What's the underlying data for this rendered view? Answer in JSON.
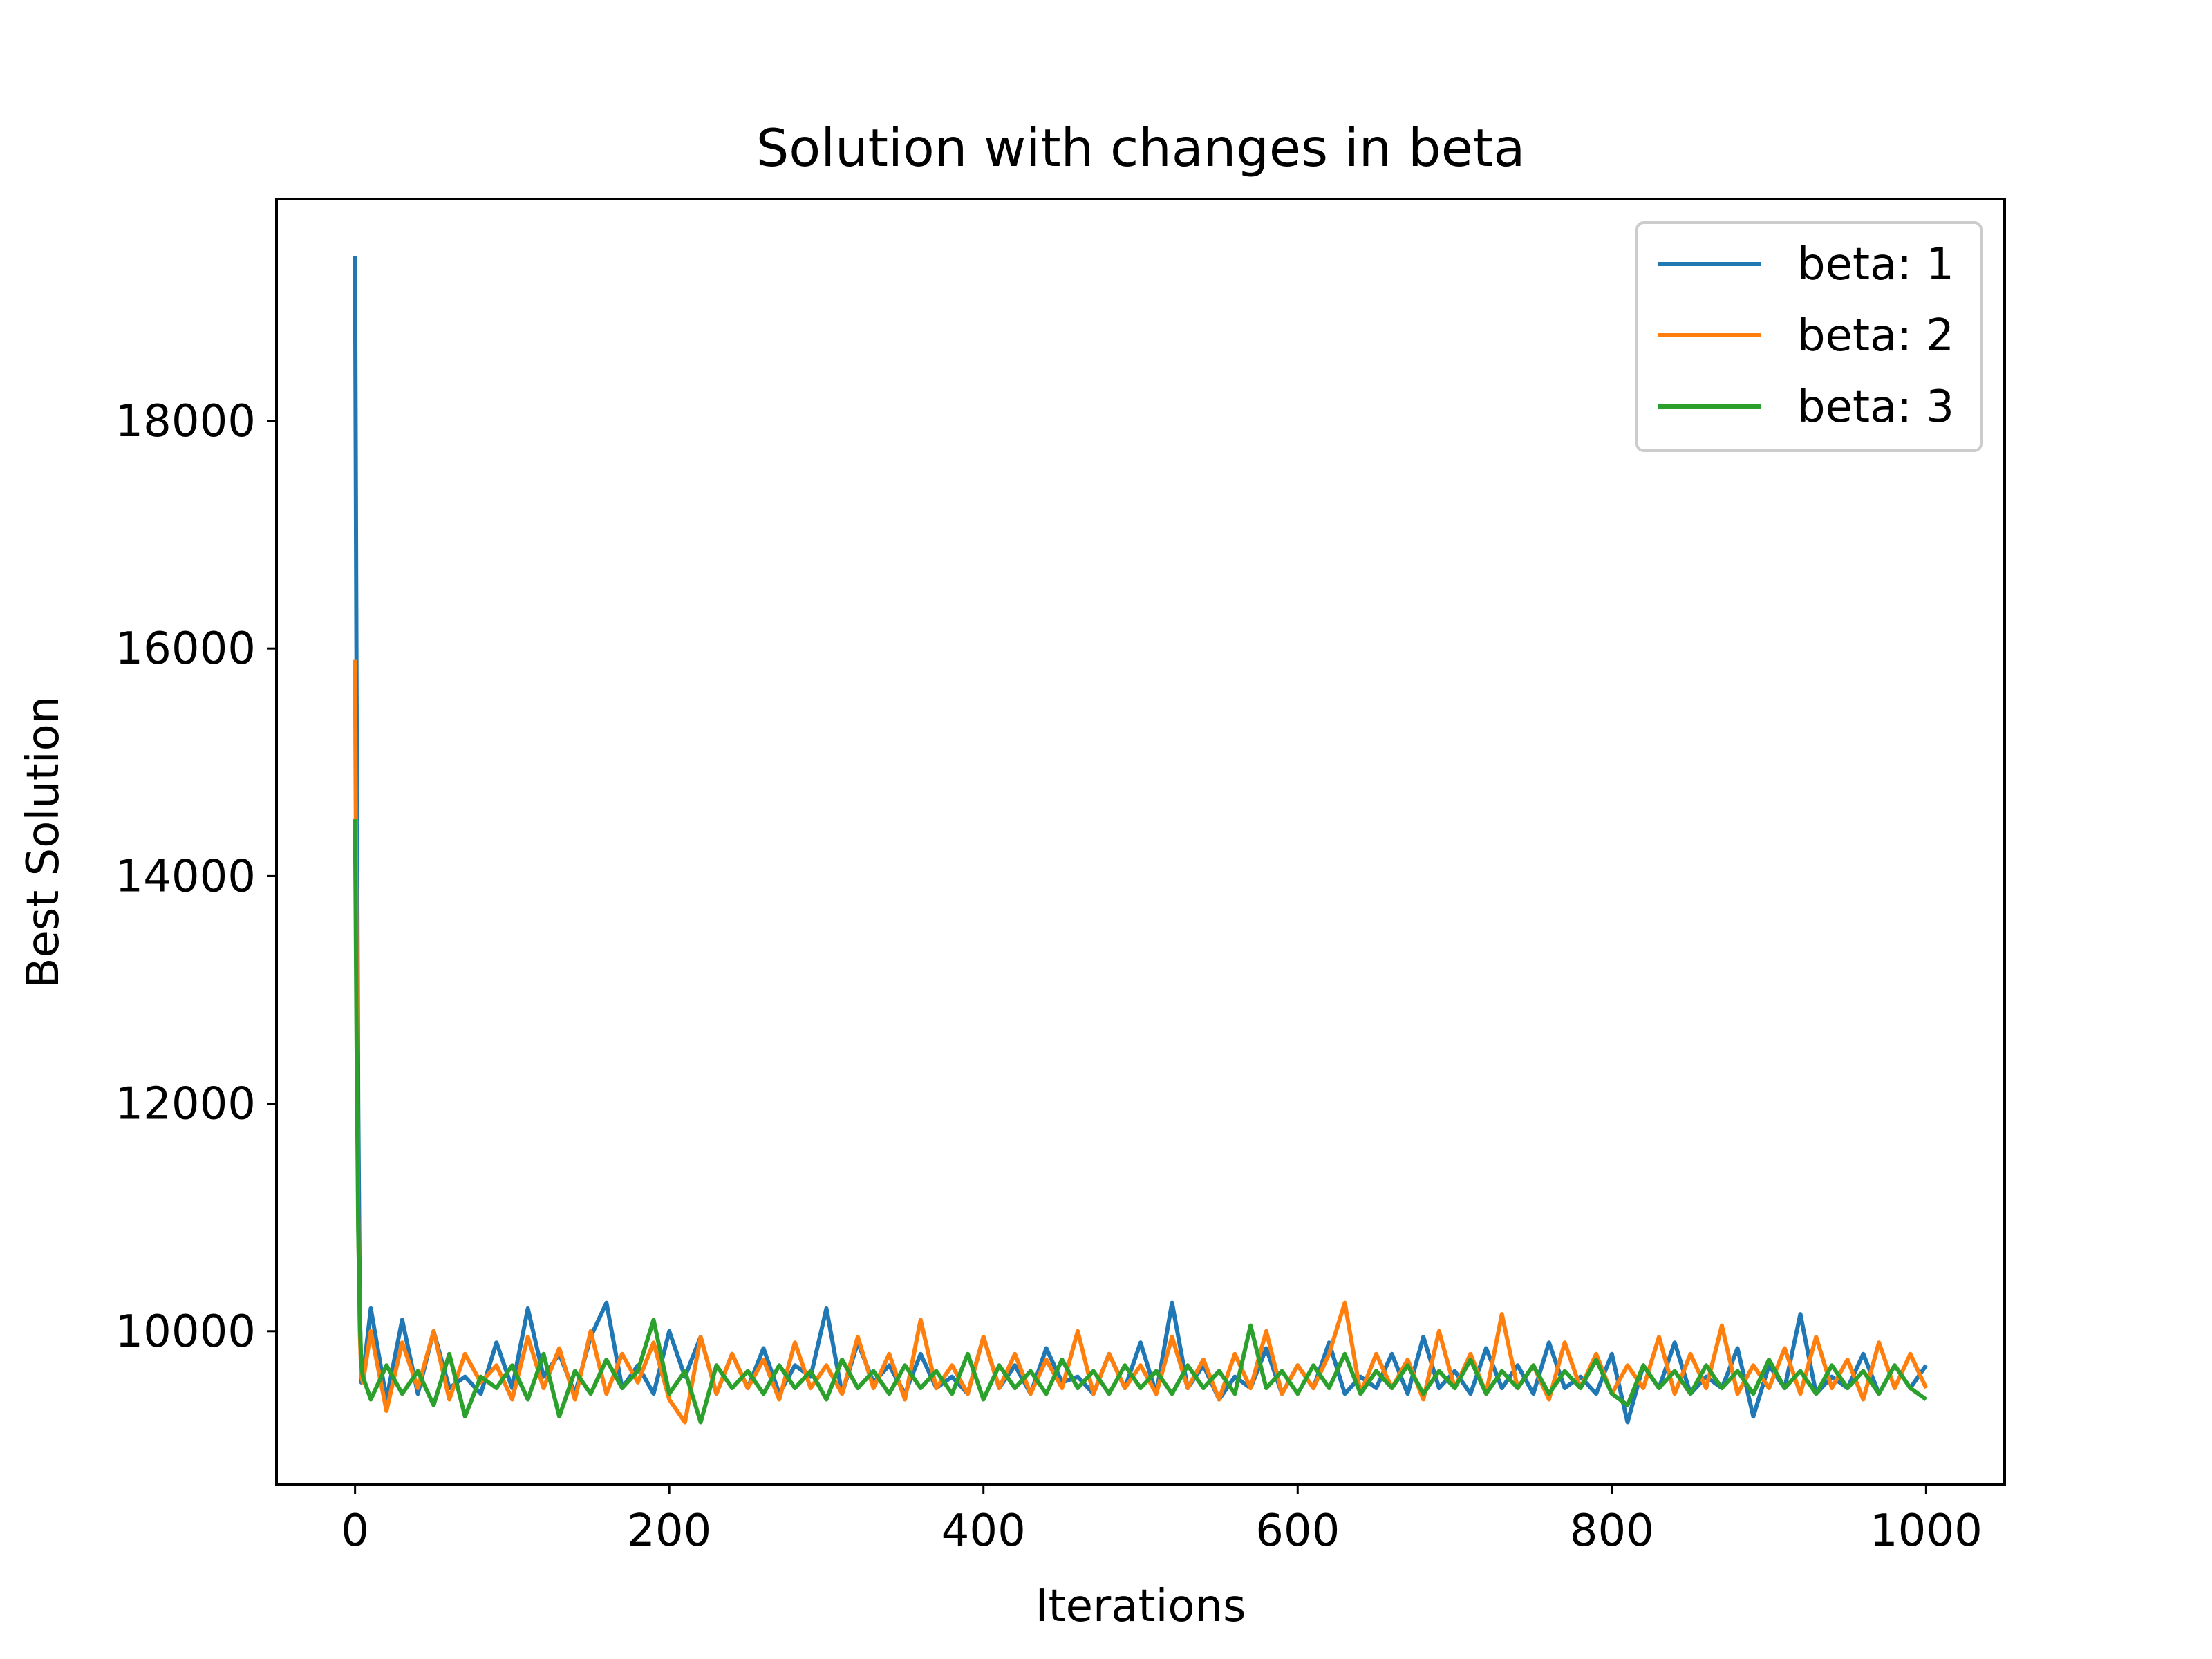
{
  "chart_data": {
    "type": "line",
    "title": "Solution with changes in beta",
    "xlabel": "Iterations",
    "ylabel": "Best Solution",
    "xlim": [
      -50,
      1050
    ],
    "ylim": [
      8650,
      19950
    ],
    "xticks": [
      0,
      200,
      400,
      600,
      800,
      1000
    ],
    "yticks": [
      10000,
      12000,
      14000,
      16000,
      18000
    ],
    "xtick_labels": [
      "0",
      "200",
      "400",
      "600",
      "800",
      "1000"
    ],
    "ytick_labels": [
      "10000",
      "12000",
      "14000",
      "16000",
      "18000"
    ],
    "grid": false,
    "legend_position": "top-right",
    "series": [
      {
        "name": "beta: 1",
        "color": "#1f77b4",
        "x": [
          0,
          1,
          2,
          3,
          4,
          5,
          10,
          20,
          30,
          40,
          50,
          60,
          70,
          80,
          90,
          100,
          110,
          120,
          130,
          140,
          150,
          160,
          170,
          180,
          190,
          200,
          210,
          220,
          230,
          240,
          250,
          260,
          270,
          280,
          290,
          300,
          310,
          320,
          330,
          340,
          350,
          360,
          370,
          380,
          390,
          400,
          410,
          420,
          430,
          440,
          450,
          460,
          470,
          480,
          490,
          500,
          510,
          520,
          530,
          540,
          550,
          560,
          570,
          580,
          590,
          600,
          610,
          620,
          630,
          640,
          650,
          660,
          670,
          680,
          690,
          700,
          710,
          720,
          730,
          740,
          750,
          760,
          770,
          780,
          790,
          800,
          810,
          820,
          830,
          840,
          850,
          860,
          870,
          880,
          890,
          900,
          910,
          920,
          930,
          940,
          950,
          960,
          970,
          980,
          990,
          1000
        ],
        "values": [
          19450,
          15500,
          12000,
          10200,
          9550,
          9600,
          10200,
          9400,
          10100,
          9450,
          10000,
          9500,
          9600,
          9450,
          9900,
          9500,
          10200,
          9600,
          9800,
          9450,
          9950,
          10250,
          9500,
          9700,
          9450,
          10000,
          9600,
          9950,
          9450,
          9800,
          9500,
          9850,
          9450,
          9700,
          9600,
          10200,
          9450,
          9900,
          9550,
          9700,
          9450,
          9800,
          9500,
          9600,
          9450,
          9950,
          9500,
          9700,
          9450,
          9850,
          9550,
          9600,
          9450,
          9800,
          9500,
          9900,
          9450,
          10250,
          9500,
          9700,
          9400,
          9600,
          9500,
          9850,
          9450,
          9700,
          9500,
          9900,
          9450,
          9600,
          9500,
          9800,
          9450,
          9950,
          9500,
          9650,
          9450,
          9850,
          9500,
          9700,
          9450,
          9900,
          9500,
          9600,
          9450,
          9800,
          9200,
          9700,
          9500,
          9900,
          9450,
          9600,
          9500,
          9850,
          9250,
          9700,
          9500,
          10150,
          9450,
          9600,
          9500,
          9800,
          9450,
          9700,
          9500,
          9700
        ]
      },
      {
        "name": "beta: 2",
        "color": "#ff7f0e",
        "x": [
          0,
          1,
          2,
          3,
          4,
          5,
          10,
          20,
          30,
          40,
          50,
          60,
          70,
          80,
          90,
          100,
          110,
          120,
          130,
          140,
          150,
          160,
          170,
          180,
          190,
          200,
          210,
          220,
          230,
          240,
          250,
          260,
          270,
          280,
          290,
          300,
          310,
          320,
          330,
          340,
          350,
          360,
          370,
          380,
          390,
          400,
          410,
          420,
          430,
          440,
          450,
          460,
          470,
          480,
          490,
          500,
          510,
          520,
          530,
          540,
          550,
          560,
          570,
          580,
          590,
          600,
          610,
          620,
          630,
          640,
          650,
          660,
          670,
          680,
          690,
          700,
          710,
          720,
          730,
          740,
          750,
          760,
          770,
          780,
          790,
          800,
          810,
          820,
          830,
          840,
          850,
          860,
          870,
          880,
          890,
          900,
          910,
          920,
          930,
          940,
          950,
          960,
          970,
          980,
          990,
          1000
        ],
        "values": [
          15900,
          13000,
          11000,
          10000,
          9600,
          9550,
          10000,
          9300,
          9900,
          9500,
          10000,
          9400,
          9800,
          9550,
          9700,
          9400,
          9950,
          9500,
          9850,
          9400,
          10000,
          9450,
          9800,
          9550,
          9900,
          9400,
          9200,
          9950,
          9450,
          9800,
          9500,
          9750,
          9400,
          9900,
          9500,
          9700,
          9450,
          9950,
          9500,
          9800,
          9400,
          10100,
          9500,
          9700,
          9450,
          9950,
          9500,
          9800,
          9450,
          9750,
          9500,
          10000,
          9450,
          9800,
          9500,
          9700,
          9450,
          9950,
          9500,
          9750,
          9400,
          9800,
          9500,
          10000,
          9450,
          9700,
          9500,
          9800,
          10250,
          9450,
          9800,
          9500,
          9750,
          9400,
          10000,
          9500,
          9800,
          9450,
          10150,
          9500,
          9700,
          9400,
          9900,
          9500,
          9800,
          9450,
          9700,
          9500,
          9950,
          9450,
          9800,
          9500,
          10050,
          9450,
          9700,
          9500,
          9850,
          9450,
          9950,
          9500,
          9750,
          9400,
          9900,
          9500,
          9800,
          9500
        ]
      },
      {
        "name": "beta: 3",
        "color": "#2ca02c",
        "x": [
          0,
          1,
          2,
          3,
          4,
          5,
          10,
          20,
          30,
          40,
          50,
          60,
          70,
          80,
          90,
          100,
          110,
          120,
          130,
          140,
          150,
          160,
          170,
          180,
          190,
          200,
          210,
          220,
          230,
          240,
          250,
          260,
          270,
          280,
          290,
          300,
          310,
          320,
          330,
          340,
          350,
          360,
          370,
          380,
          390,
          400,
          410,
          420,
          430,
          440,
          450,
          460,
          470,
          480,
          490,
          500,
          510,
          520,
          530,
          540,
          550,
          560,
          570,
          580,
          590,
          600,
          610,
          620,
          630,
          640,
          650,
          660,
          670,
          680,
          690,
          700,
          710,
          720,
          730,
          740,
          750,
          760,
          770,
          780,
          790,
          800,
          810,
          820,
          830,
          840,
          850,
          860,
          870,
          880,
          890,
          900,
          910,
          920,
          930,
          940,
          950,
          960,
          970,
          980,
          990,
          1000
        ],
        "values": [
          14500,
          12500,
          10900,
          10100,
          9700,
          9600,
          9400,
          9700,
          9450,
          9650,
          9350,
          9800,
          9250,
          9600,
          9500,
          9700,
          9400,
          9800,
          9250,
          9650,
          9450,
          9750,
          9500,
          9650,
          10100,
          9450,
          9650,
          9200,
          9700,
          9500,
          9650,
          9450,
          9700,
          9500,
          9650,
          9400,
          9750,
          9500,
          9650,
          9450,
          9700,
          9500,
          9650,
          9450,
          9800,
          9400,
          9700,
          9500,
          9650,
          9450,
          9750,
          9500,
          9650,
          9450,
          9700,
          9500,
          9650,
          9450,
          9700,
          9500,
          9650,
          9450,
          10050,
          9500,
          9650,
          9450,
          9700,
          9500,
          9800,
          9450,
          9650,
          9500,
          9700,
          9450,
          9650,
          9500,
          9750,
          9450,
          9650,
          9500,
          9700,
          9450,
          9650,
          9500,
          9750,
          9450,
          9350,
          9700,
          9500,
          9650,
          9450,
          9700,
          9500,
          9650,
          9450,
          9750,
          9500,
          9650,
          9450,
          9700,
          9500,
          9650,
          9450,
          9700,
          9500,
          9400
        ]
      }
    ]
  }
}
